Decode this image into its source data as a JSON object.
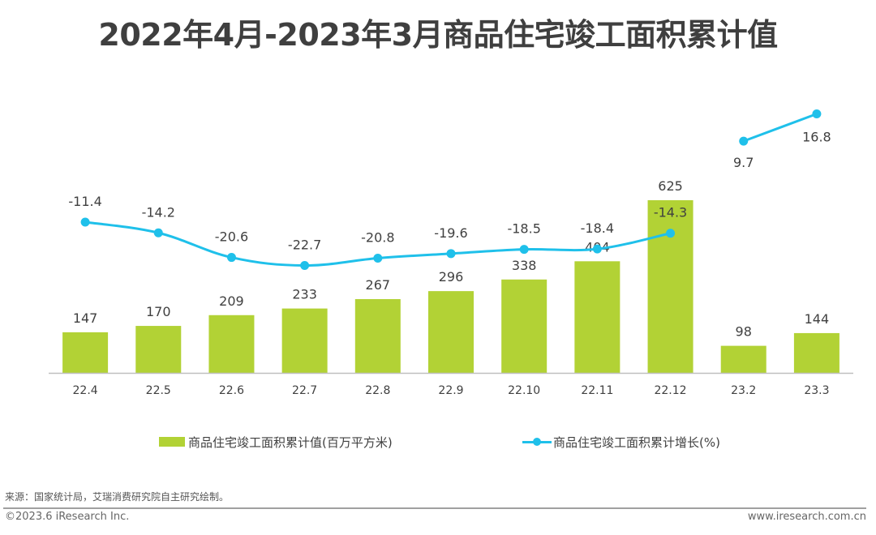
{
  "title": "2022年4月-2023年3月商品住宅竣工面积累计值",
  "colors": {
    "bar": "#b2d235",
    "line": "#1fc0ea",
    "axis": "#bfbfbf",
    "text": "#404040"
  },
  "chart_data": {
    "type": "bar",
    "title": "2022年4月-2023年3月商品住宅竣工面积累计值",
    "xlabel": "",
    "ylabel": "",
    "categories": [
      "22.4",
      "22.5",
      "22.6",
      "22.7",
      "22.8",
      "22.9",
      "22.10",
      "22.11",
      "22.12",
      "23.2",
      "23.3"
    ],
    "series": [
      {
        "name": "商品住宅竣工面积累计值(百万平方米)",
        "type": "bar",
        "values": [
          147,
          170,
          209,
          233,
          267,
          296,
          338,
          404,
          625,
          98,
          144
        ]
      },
      {
        "name": "商品住宅竣工面积累计增长(%)",
        "type": "line",
        "values": [
          -11.4,
          -14.2,
          -20.6,
          -22.7,
          -20.8,
          -19.6,
          -18.5,
          -18.4,
          -14.3,
          9.7,
          16.8
        ],
        "segments": [
          [
            0,
            8
          ],
          [
            9,
            10
          ]
        ]
      }
    ],
    "bar_ylim": [
      0,
      1000
    ],
    "line_ylim": [
      -60,
      20
    ],
    "grid": false,
    "legend_position": "bottom"
  },
  "legend": {
    "bar_label": "商品住宅竣工面积累计值(百万平方米)",
    "line_label": "商品住宅竣工面积累计增长(%)"
  },
  "footer": {
    "source": "来源：国家统计局，艾瑞消费研究院自主研究绘制。",
    "copyright": "©2023.6 iResearch Inc.",
    "website": "www.iresearch.com.cn"
  }
}
